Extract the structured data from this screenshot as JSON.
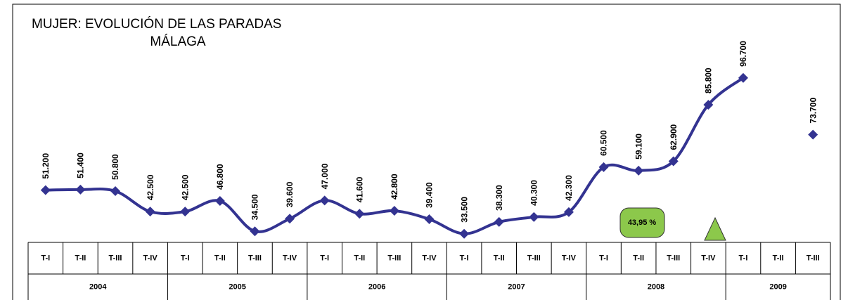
{
  "chart_data": {
    "type": "line",
    "title": "MUJER: EVOLUCIÓN DE LAS PARADAS",
    "subtitle": "MÁLAGA",
    "groups": [
      {
        "name": "2004",
        "categories": [
          "T-I",
          "T-II",
          "T-III",
          "T-IV"
        ]
      },
      {
        "name": "2005",
        "categories": [
          "T-I",
          "T-II",
          "T-III",
          "T-IV"
        ]
      },
      {
        "name": "2006",
        "categories": [
          "T-I",
          "T-II",
          "T-III",
          "T-IV"
        ]
      },
      {
        "name": "2007",
        "categories": [
          "T-I",
          "T-II",
          "T-III",
          "T-IV"
        ]
      },
      {
        "name": "2008",
        "categories": [
          "T-I",
          "T-II",
          "T-III",
          "T-IV"
        ]
      },
      {
        "name": "2009",
        "categories": [
          "T-I",
          "T-II",
          "T-III"
        ]
      }
    ],
    "values": [
      51200,
      51400,
      50800,
      42500,
      42500,
      46800,
      34500,
      39600,
      47000,
      41600,
      42800,
      39400,
      33500,
      38300,
      40300,
      42300,
      60500,
      59100,
      62900,
      85800,
      96700,
      null,
      73700
    ],
    "value_labels": [
      "51.200",
      "51.400",
      "50.800",
      "42.500",
      "42.500",
      "46.800",
      "34.500",
      "39.600",
      "47.000",
      "41.600",
      "42.800",
      "39.400",
      "33.500",
      "38.300",
      "40.300",
      "42.300",
      "60.500",
      "59.100",
      "62.900",
      "85.800",
      "96.700",
      null,
      "73.700"
    ],
    "color": "#333391",
    "ylim": [
      30000,
      122000
    ],
    "annotations": [
      {
        "text": "43,95 %",
        "color": "#8cc84b"
      }
    ],
    "marker_color": "#8cc84b"
  }
}
